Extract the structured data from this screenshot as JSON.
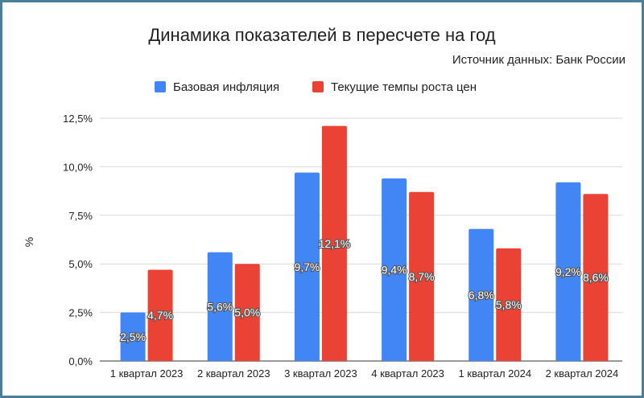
{
  "chart_data": {
    "type": "bar",
    "title": "Динамика показателей в пересчете на год",
    "subtitle": "Источник данных: Банк России",
    "ylabel": "%",
    "xlabel": "",
    "categories": [
      "1 квартал 2023",
      "2 квартал 2023",
      "3 квартал 2023",
      "4 квартал 2023",
      "1 квартал 2024",
      "2 квартал 2024"
    ],
    "series": [
      {
        "name": "Базовая инфляция",
        "color": "#4285f4",
        "values": [
          2.5,
          5.6,
          9.7,
          9.4,
          6.8,
          9.2
        ],
        "labels": [
          "2,5%",
          "5,6%",
          "9,7%",
          "9,4%",
          "6,8%",
          "9,2%"
        ]
      },
      {
        "name": "Текущие темпы роста цен",
        "color": "#ea4335",
        "values": [
          4.7,
          5.0,
          12.1,
          8.7,
          5.8,
          8.6
        ],
        "labels": [
          "4,7%",
          "5,0%",
          "12,1%",
          "8,7%",
          "5,8%",
          "8,6%"
        ]
      }
    ],
    "ylim": [
      0,
      12.5
    ],
    "yticks": [
      0,
      2.5,
      5,
      7.5,
      10,
      12.5
    ],
    "ytick_labels": [
      "0,0%",
      "2,5%",
      "5,0%",
      "7,5%",
      "10,0%",
      "12,5%"
    ],
    "grid": true,
    "gridline_color": "#d9d9d9",
    "legend_position": "top"
  }
}
